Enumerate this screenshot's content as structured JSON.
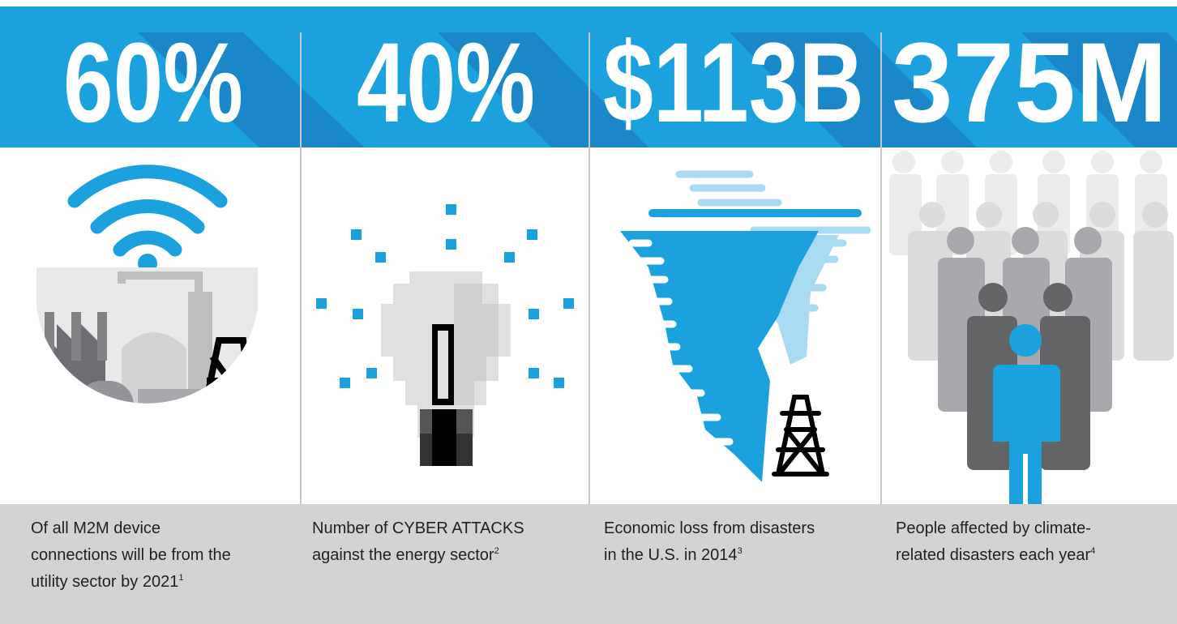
{
  "panels": [
    {
      "stat": "60%",
      "lines": [
        "Of all M2M device",
        "connections will be from the",
        "utility sector by 2021"
      ],
      "footnote": "1"
    },
    {
      "stat": "40%",
      "lines": [
        "Number of CYBER ATTACKS",
        "against the energy sector"
      ],
      "footnote": "2"
    },
    {
      "stat": "$113B",
      "lines": [
        "Economic loss from disasters",
        "in the U.S. in 2014"
      ],
      "footnote": "3"
    },
    {
      "stat": "375M",
      "lines": [
        "People affected by climate-",
        "related disasters each year"
      ],
      "footnote": "4"
    }
  ]
}
